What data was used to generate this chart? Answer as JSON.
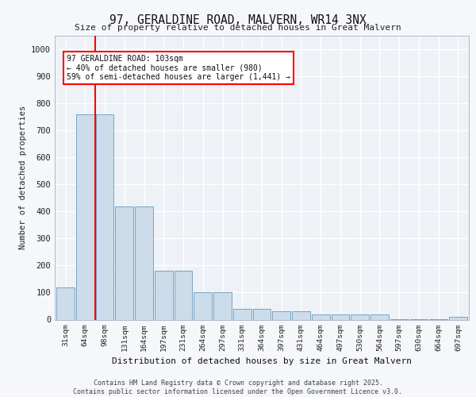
{
  "title_line1": "97, GERALDINE ROAD, MALVERN, WR14 3NX",
  "title_line2": "Size of property relative to detached houses in Great Malvern",
  "xlabel": "Distribution of detached houses by size in Great Malvern",
  "ylabel": "Number of detached properties",
  "categories": [
    "31sqm",
    "64sqm",
    "98sqm",
    "131sqm",
    "164sqm",
    "197sqm",
    "231sqm",
    "264sqm",
    "297sqm",
    "331sqm",
    "364sqm",
    "397sqm",
    "431sqm",
    "464sqm",
    "497sqm",
    "530sqm",
    "564sqm",
    "597sqm",
    "630sqm",
    "664sqm",
    "697sqm"
  ],
  "values": [
    120,
    760,
    760,
    420,
    420,
    180,
    180,
    100,
    100,
    40,
    40,
    30,
    30,
    20,
    20,
    20,
    20,
    2,
    2,
    2,
    10
  ],
  "bar_color": "#ccdcea",
  "bar_edge_color": "#6699bb",
  "red_line_x": 1.5,
  "annotation_text": "97 GERALDINE ROAD: 103sqm\n← 40% of detached houses are smaller (980)\n59% of semi-detached houses are larger (1,441) →",
  "annotation_box_facecolor": "white",
  "annotation_box_edgecolor": "red",
  "ylim": [
    0,
    1050
  ],
  "yticks": [
    0,
    100,
    200,
    300,
    400,
    500,
    600,
    700,
    800,
    900,
    1000
  ],
  "footer_line1": "Contains HM Land Registry data © Crown copyright and database right 2025.",
  "footer_line2": "Contains public sector information licensed under the Open Government Licence v3.0.",
  "plot_bg_color": "#eef2f7",
  "fig_bg_color": "#f5f7fa",
  "grid_color": "#ffffff"
}
